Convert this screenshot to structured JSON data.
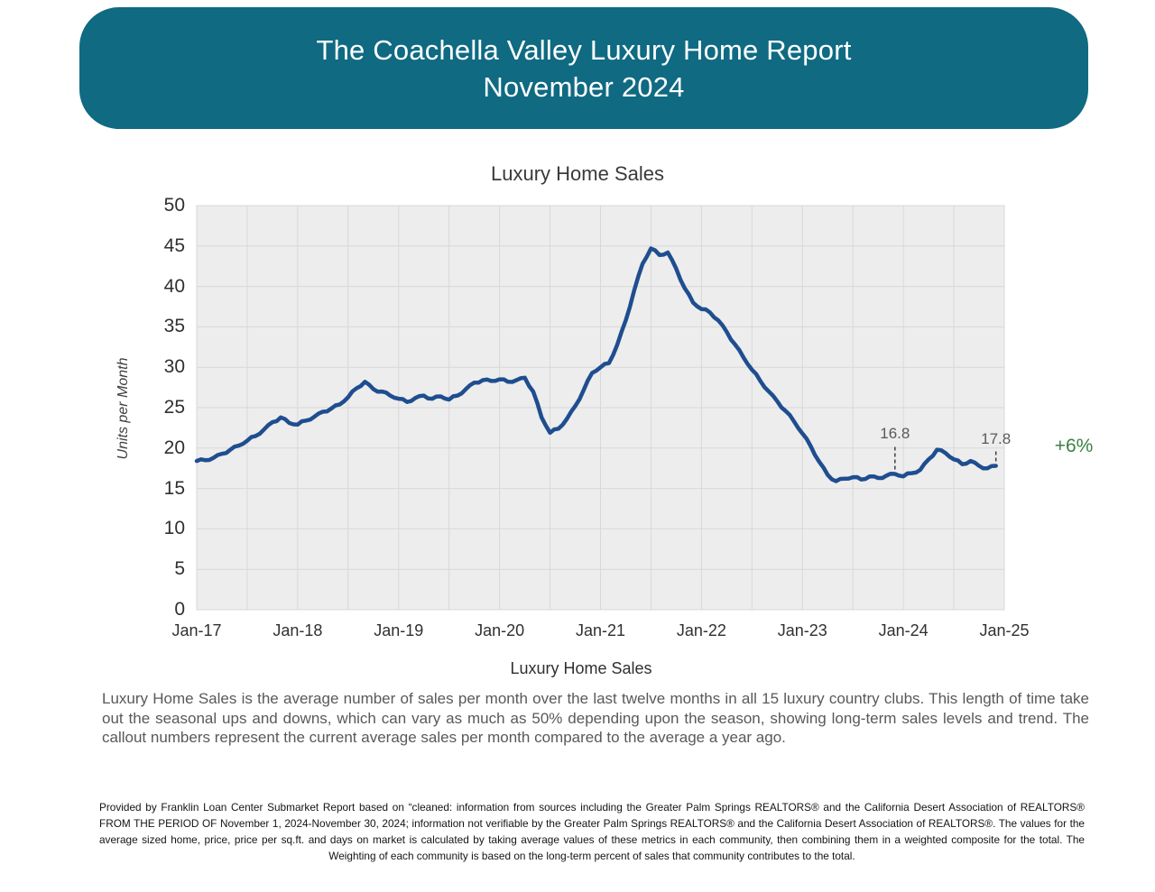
{
  "header": {
    "title_line1": "The Coachella Valley Luxury Home Report",
    "title_line2": "November 2024",
    "background_color": "#0F6A82"
  },
  "chart_data": {
    "type": "line",
    "title": "Luxury Home Sales",
    "ylabel": "Units per Month",
    "xlabel": "Luxury Home Sales",
    "ylim": [
      0,
      50
    ],
    "ytick_step": 5,
    "grid": true,
    "plot_background": "#EDEDED",
    "grid_color": "#D8D8D8",
    "line_color": "#1F4E8F",
    "x_tick_labels": [
      "Jan-17",
      "Jan-18",
      "Jan-19",
      "Jan-20",
      "Jan-21",
      "Jan-22",
      "Jan-23",
      "Jan-24",
      "Jan-25"
    ],
    "months": [
      "Dec-16",
      "Jan-17",
      "Feb-17",
      "Mar-17",
      "Apr-17",
      "May-17",
      "Jun-17",
      "Jul-17",
      "Aug-17",
      "Sep-17",
      "Oct-17",
      "Nov-17",
      "Dec-17",
      "Jan-18",
      "Feb-18",
      "Mar-18",
      "Apr-18",
      "May-18",
      "Jun-18",
      "Jul-18",
      "Aug-18",
      "Sep-18",
      "Oct-18",
      "Nov-18",
      "Dec-18",
      "Jan-19",
      "Feb-19",
      "Mar-19",
      "Apr-19",
      "May-19",
      "Jun-19",
      "Jul-19",
      "Aug-19",
      "Sep-19",
      "Oct-19",
      "Nov-19",
      "Dec-19",
      "Jan-20",
      "Feb-20",
      "Mar-20",
      "Apr-20",
      "May-20",
      "Jun-20",
      "Jul-20",
      "Aug-20",
      "Sep-20",
      "Oct-20",
      "Nov-20",
      "Dec-20",
      "Jan-21",
      "Feb-21",
      "Mar-21",
      "Apr-21",
      "May-21",
      "Jun-21",
      "Jul-21",
      "Aug-21",
      "Sep-21",
      "Oct-21",
      "Nov-21",
      "Dec-21",
      "Jan-22",
      "Feb-22",
      "Mar-22",
      "Apr-22",
      "May-22",
      "Jun-22",
      "Jul-22",
      "Aug-22",
      "Sep-22",
      "Oct-22",
      "Nov-22",
      "Dec-22",
      "Jan-23",
      "Feb-23",
      "Mar-23",
      "Apr-23",
      "May-23",
      "Jun-23",
      "Jul-23",
      "Aug-23",
      "Sep-23",
      "Oct-23",
      "Nov-23",
      "Dec-23",
      "Jan-24",
      "Feb-24",
      "Mar-24",
      "Apr-24",
      "May-24",
      "Jun-24",
      "Jul-24",
      "Aug-24",
      "Sep-24",
      "Oct-24",
      "Nov-24"
    ],
    "values": [
      18.4,
      18.5,
      18.8,
      19.3,
      19.8,
      20.3,
      20.9,
      21.5,
      22.3,
      23.2,
      23.8,
      23.1,
      22.9,
      23.4,
      23.9,
      24.5,
      24.9,
      25.4,
      26.3,
      27.4,
      28.2,
      27.3,
      27.0,
      26.5,
      26.1,
      25.7,
      26.2,
      26.5,
      26.1,
      26.4,
      26.0,
      26.5,
      27.3,
      28.1,
      28.4,
      28.3,
      28.5,
      28.2,
      28.4,
      28.7,
      27.0,
      23.8,
      21.9,
      22.4,
      23.6,
      25.2,
      27.2,
      29.3,
      30.0,
      30.5,
      32.8,
      35.8,
      39.5,
      42.8,
      44.7,
      43.9,
      44.2,
      42.2,
      39.8,
      38.0,
      37.2,
      36.8,
      35.8,
      34.4,
      32.8,
      31.2,
      29.7,
      28.3,
      27.0,
      25.8,
      24.6,
      23.3,
      21.8,
      20.2,
      18.3,
      16.7,
      15.9,
      16.2,
      16.4,
      16.1,
      16.5,
      16.3,
      16.6,
      16.8,
      16.5,
      16.9,
      17.3,
      18.6,
      19.8,
      19.4,
      18.6,
      18.0,
      18.4,
      17.8,
      17.5,
      17.8
    ],
    "annotations": [
      {
        "label": "16.8",
        "month": "Nov-23",
        "index": 83,
        "value": 16.8,
        "label_dy": -44
      },
      {
        "label": "17.8",
        "month": "Nov-24",
        "index": 95,
        "value": 17.8,
        "label_dy": -30
      }
    ],
    "change_label": "+6%",
    "change_color": "#3B8143"
  },
  "description": "Luxury Home Sales is the average number of sales per month over the last twelve months in all 15 luxury country clubs. This length of time take out the seasonal ups and downs, which can vary as much as 50% depending upon the season, showing long-term sales levels and trend. The callout numbers represent the current average sales per month compared to the average a year ago.",
  "disclaimer": "Provided by Franklin Loan Center Submarket Report based on “cleaned: information from sources including the Greater Palm Springs REALTORS® and the California Desert Association of REALTORS® FROM THE PERIOD OF November 1, 2024-November 30, 2024; information not verifiable by the Greater Palm Springs REALTORS® and the California Desert Association of REALTORS®. The values for the average sized home, price, price per sq.ft. and days on market is calculated by taking average values of these metrics in each community, then combining them in a weighted composite for the total. The Weighting of each community is based on the long-term percent of sales that community contributes to the total."
}
